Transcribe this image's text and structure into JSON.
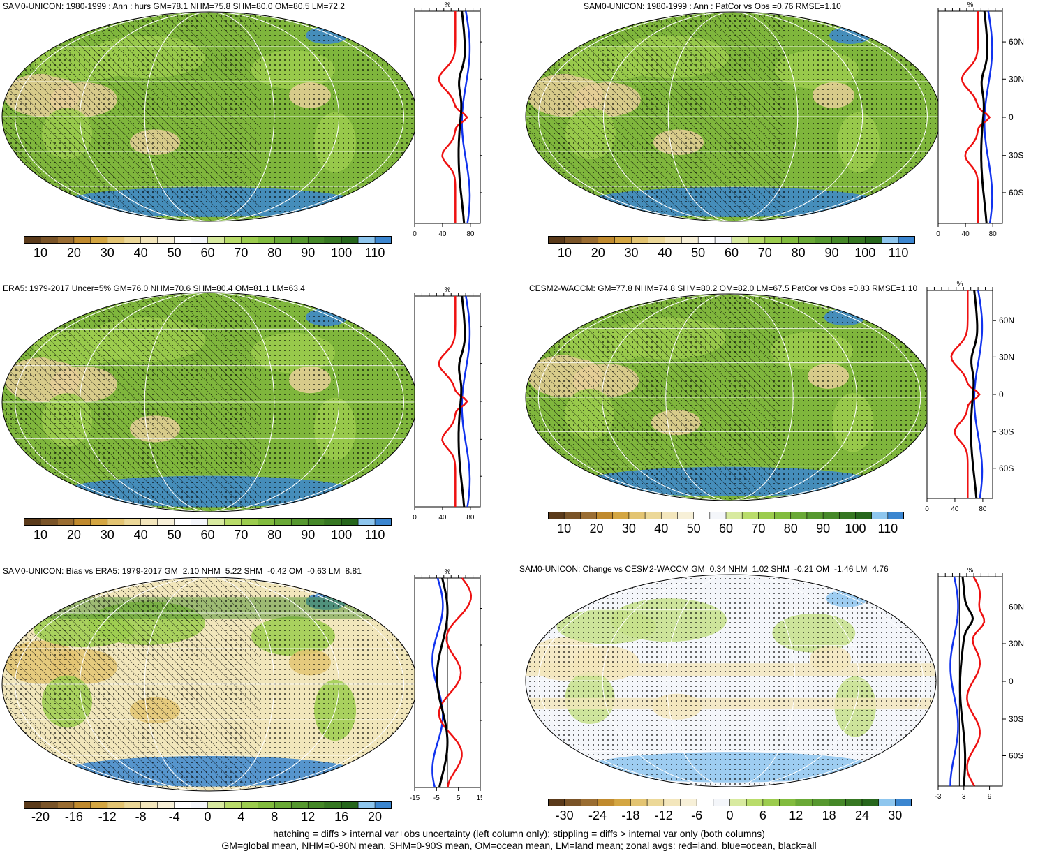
{
  "panels": [
    {
      "id": "p1",
      "title": "SAM0-UNICON: 1980-1999 : Ann : hurs GM=78.1 NHM=75.8 SHM=80.0 OM=80.5 LM=72.2",
      "kind": "abs"
    },
    {
      "id": "p2",
      "title": "SAM0-UNICON: 1980-1999 : Ann : PatCor vs Obs =0.76 RMSE=1.10",
      "kind": "abs"
    },
    {
      "id": "p3",
      "title": "ERA5: 1979-2017 Uncer=5% GM=76.0 NHM=70.6 SHM=80.4 OM=81.1 LM=63.4",
      "kind": "abs"
    },
    {
      "id": "p4",
      "title": "CESM2-WACCM: GM=77.8 NHM=74.8 SHM=80.2 OM=82.0 LM=67.5 PatCor vs Obs =0.83 RMSE=1.10",
      "kind": "abs"
    },
    {
      "id": "p5",
      "title": "SAM0-UNICON: Bias vs ERA5: 1979-2017 GM=2.10 NHM=5.22 SHM=-0.42 OM=-0.63 LM=8.81",
      "kind": "bias"
    },
    {
      "id": "p6",
      "title": "SAM0-UNICON: Change vs CESM2-WACCM GM=0.34 NHM=1.02 SHM=-0.21 OM=-1.46 LM=4.76",
      "kind": "change"
    }
  ],
  "zonal_plot": {
    "unit_label": "%",
    "lat_labels": [
      "60N",
      "30N",
      "0",
      "30S",
      "60S"
    ],
    "abs_ticks": [
      "0",
      "40",
      "80"
    ],
    "bias_ticks": [
      "-15",
      "-5",
      "5",
      "15"
    ],
    "change_ticks": [
      "-3",
      "3",
      "9"
    ],
    "legend_colors": {
      "land": "#ee1111",
      "ocean": "#1133ee",
      "all": "#000000"
    }
  },
  "colorbars": {
    "abs": {
      "labels": [
        "10",
        "20",
        "30",
        "40",
        "50",
        "60",
        "70",
        "80",
        "90",
        "100",
        "110"
      ],
      "colors": [
        "#5a3a1a",
        "#7a5428",
        "#9a6d32",
        "#c08a2e",
        "#d4a642",
        "#e3c472",
        "#ecd898",
        "#f3e6bc",
        "#f7f0d8",
        "#ffffff",
        "#f4f6fa",
        "#d8eaa0",
        "#b9dc6a",
        "#9ccc4e",
        "#82bc3e",
        "#6aa936",
        "#56982f",
        "#458828",
        "#367722",
        "#26661c",
        "#8ec6ee",
        "#3b86d0"
      ]
    },
    "bias": {
      "labels": [
        "-20",
        "-16",
        "-12",
        "-8",
        "-4",
        "0",
        "4",
        "8",
        "12",
        "16",
        "20"
      ],
      "colors": [
        "#5a3a1a",
        "#7a5428",
        "#9a6d32",
        "#c08a2e",
        "#d4a642",
        "#e3c472",
        "#ecd898",
        "#f3e6bc",
        "#f7f0d8",
        "#ffffff",
        "#f4f6fa",
        "#d8eaa0",
        "#b9dc6a",
        "#9ccc4e",
        "#82bc3e",
        "#6aa936",
        "#56982f",
        "#458828",
        "#367722",
        "#26661c",
        "#8ec6ee",
        "#3b86d0"
      ]
    },
    "change": {
      "labels": [
        "-30",
        "-24",
        "-18",
        "-12",
        "-6",
        "0",
        "6",
        "12",
        "18",
        "24",
        "30"
      ],
      "colors": [
        "#5a3a1a",
        "#7a5428",
        "#9a6d32",
        "#c08a2e",
        "#d4a642",
        "#e3c472",
        "#ecd898",
        "#f3e6bc",
        "#f7f0d8",
        "#ffffff",
        "#f4f6fa",
        "#d8eaa0",
        "#b9dc6a",
        "#9ccc4e",
        "#82bc3e",
        "#6aa936",
        "#56982f",
        "#458828",
        "#367722",
        "#26661c",
        "#8ec6ee",
        "#3b86d0"
      ]
    }
  },
  "footer": {
    "line1": "hatching = diffs > internal var+obs uncertainty (left column only); stippling = diffs > internal var only (both columns)",
    "line2": "GM=global mean, NHM=0-90N mean, SHM=0-90S mean, OM=ocean mean, LM=land mean; zonal avgs: red=land, blue=ocean, black=all"
  }
}
